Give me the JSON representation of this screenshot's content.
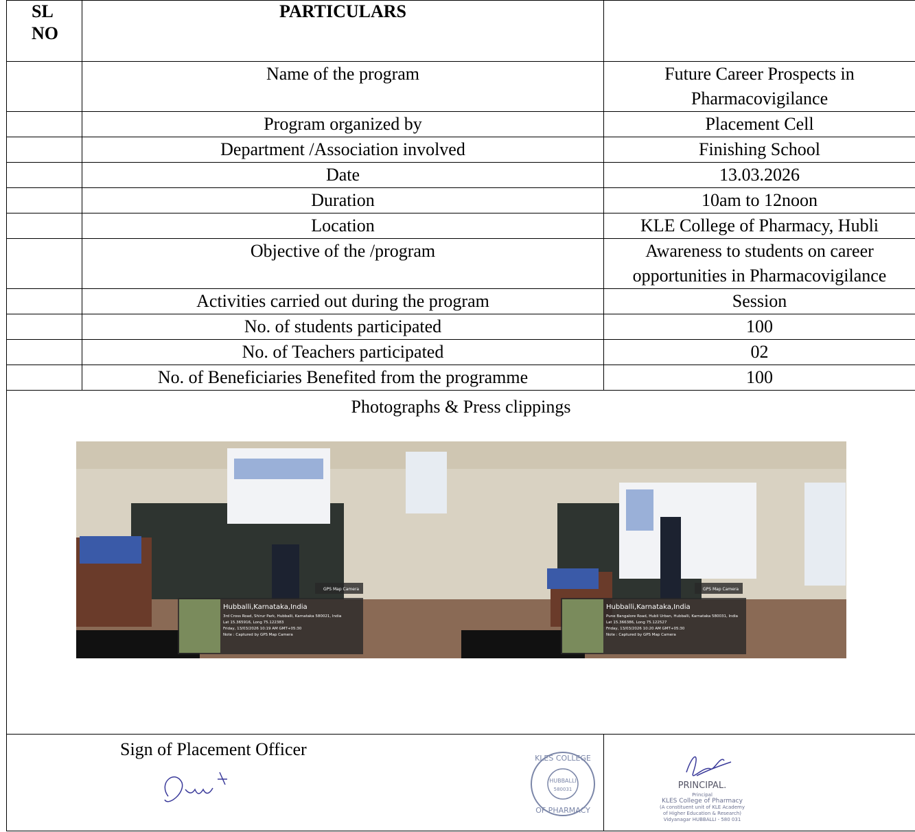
{
  "header": {
    "sl_no": "SL NO",
    "particulars": "PARTICULARS"
  },
  "rows": [
    [
      "Name of the program",
      "Future Career Prospects in Pharmacovigilance"
    ],
    [
      "Program organized by",
      "Placement Cell"
    ],
    [
      "Department /Association involved",
      "Finishing School"
    ],
    [
      "Date",
      "13.03.2026"
    ],
    [
      "Duration",
      "10am to 12noon"
    ],
    [
      "Location",
      "KLE College of Pharmacy, Hubli"
    ],
    [
      "Objective of the /program",
      "Awareness to students on career opportunities in Pharmacovigilance"
    ],
    [
      "Activities carried out during the program",
      "Session"
    ],
    [
      "No. of students participated",
      "100"
    ],
    [
      "No. of Teachers participated",
      "02"
    ],
    [
      "No. of Beneficiaries Benefited from the programme",
      "100"
    ]
  ],
  "photos": {
    "title": "Photographs & Press clippings",
    "items": [
      {
        "badge": "GPS Map Camera",
        "place": "Hubballi,Karnataka,India",
        "lines": [
          "3rd Cross Road, Shirur Park, Hubballi, Karnataka 580021, India",
          "Lat 15.365916, Long 75.122383",
          "Friday, 13/03/2026 10:19 AM GMT+05:30",
          "Note : Captured by GPS Map Camera"
        ]
      },
      {
        "badge": "GPS Map Camera",
        "place": "Hubballi,Karnataka,India",
        "lines": [
          "Pune Bangalore Road, Hubli Urban, Hubballi, Karnataka 580031, India",
          "Lat 15.366386, Long 75.122527",
          "Friday, 13/03/2026 10:20 AM GMT+05:30",
          "Note : Captured by GPS Map Camera"
        ]
      }
    ]
  },
  "signatures": {
    "placement_label": "Sign of Placement Officer",
    "principal_title": "PRINCIPAL.",
    "principal_lines": [
      "Principal",
      "KLES College of Pharmacy",
      "(A constituent unit of KLE Academy",
      "of Higher Education & Research)",
      "Vidyanagar HUBBALLI - 580 031"
    ],
    "stamp": {
      "top": "KLES COLLEGE",
      "middle": "HUBBALLI",
      "code": "580031",
      "bottom": "OF PHARMACY"
    }
  }
}
